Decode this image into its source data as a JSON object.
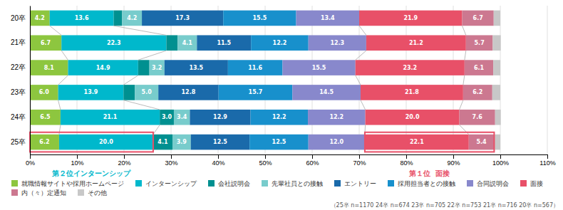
{
  "chart_data": {
    "type": "bar",
    "orientation": "horizontal",
    "stacked": true,
    "data_labels": true,
    "grid": true,
    "legend": "bottom",
    "categories": [
      "20卒",
      "21卒",
      "22卒",
      "23卒",
      "24卒",
      "25卒"
    ],
    "series": [
      {
        "name": "就職情報サイトや採用ホームページ",
        "color": "#8dc63f",
        "values": [
          4.2,
          6.7,
          8.1,
          6.0,
          6.5,
          6.2
        ]
      },
      {
        "name": "インターンシップ",
        "color": "#00b8cc",
        "values": [
          13.6,
          22.3,
          14.9,
          13.9,
          21.1,
          20.0
        ]
      },
      {
        "name": "会社説明会",
        "color": "#009090",
        "values": [
          1.8,
          2.4,
          2.4,
          2.4,
          3.0,
          4.1
        ]
      },
      {
        "name": "先輩社員との接触",
        "color": "#78cccc",
        "values": [
          4.2,
          4.1,
          3.2,
          5.0,
          3.4,
          3.9
        ]
      },
      {
        "name": "エントリー",
        "color": "#1a6aaa",
        "values": [
          17.3,
          11.5,
          13.5,
          12.8,
          12.9,
          12.5
        ]
      },
      {
        "name": "採用担当者との接触",
        "color": "#1890cc",
        "values": [
          15.5,
          12.2,
          11.6,
          15.7,
          12.2,
          12.5
        ]
      },
      {
        "name": "合同説明会",
        "color": "#8888cc",
        "values": [
          13.4,
          12.3,
          15.5,
          14.5,
          12.2,
          12.0
        ]
      },
      {
        "name": "面接",
        "color": "#e85068",
        "values": [
          21.9,
          21.2,
          23.2,
          21.8,
          20.0,
          22.1
        ]
      },
      {
        "name": "内（々）定通知",
        "color": "#cc7890",
        "values": [
          6.7,
          5.7,
          6.1,
          6.2,
          7.6,
          5.4
        ]
      },
      {
        "name": "その他",
        "color": "#c8c8c8",
        "values": [
          1.4,
          1.7,
          1.5,
          1.7,
          1.2,
          1.3
        ]
      }
    ],
    "xlim": [
      0,
      110
    ],
    "xticks": [
      {
        "value": 0,
        "label": "0%"
      },
      {
        "value": 10,
        "label": "10%"
      },
      {
        "value": 20,
        "label": "20%"
      },
      {
        "value": 30,
        "label": "30%"
      },
      {
        "value": 40,
        "label": "40%"
      },
      {
        "value": 50,
        "label": "50%"
      },
      {
        "value": 60,
        "label": "60%"
      },
      {
        "value": 70,
        "label": "70%"
      },
      {
        "value": 80,
        "label": "80%"
      },
      {
        "value": 90,
        "label": "90%"
      },
      {
        "value": 100,
        "label": "100%"
      },
      {
        "value": 110,
        "label": "110%"
      }
    ],
    "annotations": [
      "第２位インターンシップ",
      "第１位  面接",
      "（25卒 n=1170 24卒 n=674 23卒 n=705 22卒 n=753 21卒 n=716 20卒 n=567）"
    ]
  }
}
